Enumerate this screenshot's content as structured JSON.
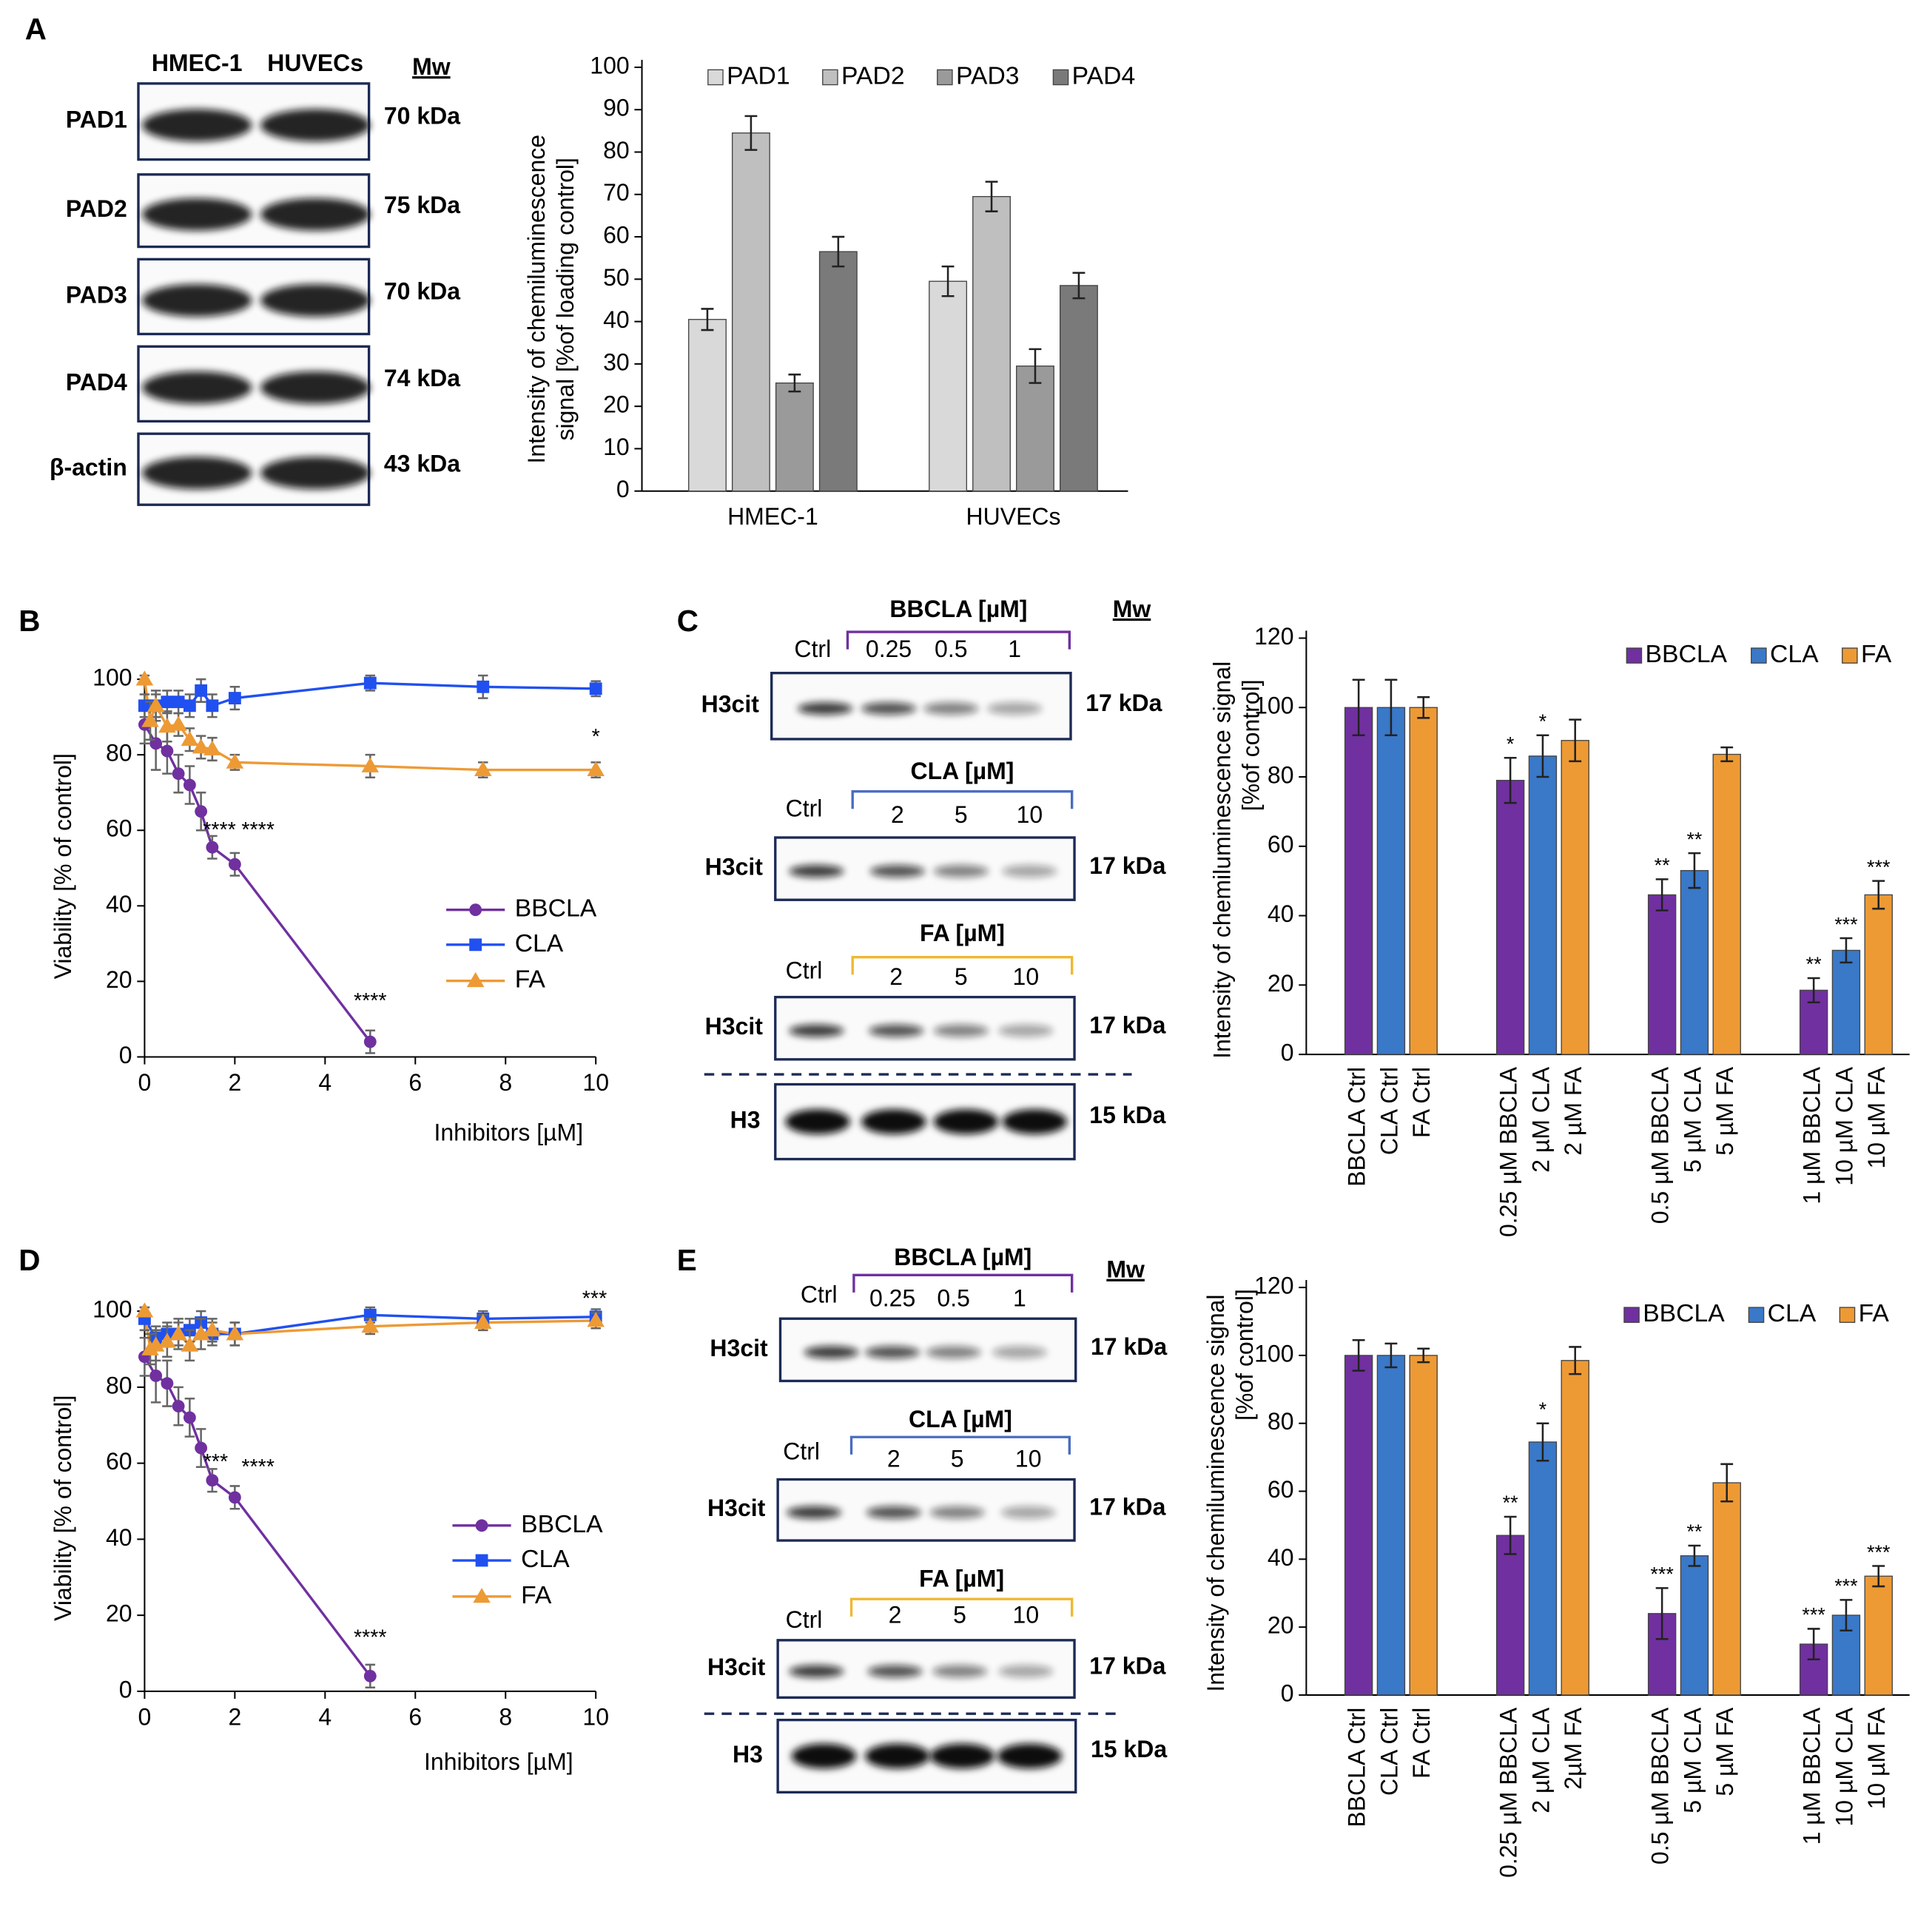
{
  "panels": [
    "A",
    "B",
    "C",
    "D",
    "E"
  ],
  "blots": {
    "A": {
      "lanes": [
        "HMEC-1",
        "HUVECs"
      ],
      "mw_header": "Mw",
      "rows": [
        {
          "label": "PAD1",
          "mw": "70 kDa"
        },
        {
          "label": "PAD2",
          "mw": "75 kDa"
        },
        {
          "label": "PAD3",
          "mw": "70 kDa"
        },
        {
          "label": "PAD4",
          "mw": "74 kDa"
        },
        {
          "label": "β-actin",
          "mw": "43 kDa"
        }
      ]
    },
    "C": {
      "mw_header": "Mw",
      "groups": [
        {
          "header": "BBCLA [µM]",
          "lanes": [
            "Ctrl",
            "0.25",
            "0.5",
            "1"
          ],
          "row": "H3cit",
          "mw": "17 kDa"
        },
        {
          "header": "CLA [µM]",
          "lanes": [
            "Ctrl",
            "2",
            "5",
            "10"
          ],
          "row": "H3cit",
          "mw": "17 kDa"
        },
        {
          "header": "FA [µM]",
          "lanes": [
            "Ctrl",
            "2",
            "5",
            "10"
          ],
          "row": "H3cit",
          "mw": "17 kDa"
        }
      ],
      "loading": {
        "row": "H3",
        "mw": "15 kDa"
      }
    },
    "E": {
      "mw_header": "Mw",
      "groups": [
        {
          "header": "BBCLA [µM]",
          "lanes": [
            "Ctrl",
            "0.25",
            "0.5",
            "1"
          ],
          "row": "H3cit",
          "mw": "17 kDa"
        },
        {
          "header": "CLA [µM]",
          "lanes": [
            "Ctrl",
            "2",
            "5",
            "10"
          ],
          "row": "H3cit",
          "mw": "17 kDa"
        },
        {
          "header": "FA [µM]",
          "lanes": [
            "Ctrl",
            "2",
            "5",
            "10"
          ],
          "row": "H3cit",
          "mw": "17 kDa"
        }
      ],
      "loading": {
        "row": "H3",
        "mw": "15 kDa"
      }
    }
  },
  "chart_data": [
    {
      "type": "bar",
      "ylabel": [
        "Intensity of chemiluminescence",
        "signal [%of loading control]"
      ],
      "categories": [
        "HMEC-1",
        "HUVECs"
      ],
      "series": [
        {
          "name": "PAD1",
          "color": "#d9d9d9",
          "values": [
            40.5,
            49.5
          ],
          "errors": [
            2.5,
            3.5
          ]
        },
        {
          "name": "PAD2",
          "color": "#bfbfbf",
          "values": [
            84.5,
            69.5
          ],
          "errors": [
            4,
            3.5
          ]
        },
        {
          "name": "PAD3",
          "color": "#9a9a9a",
          "values": [
            25.5,
            29.5
          ],
          "errors": [
            2,
            4
          ]
        },
        {
          "name": "PAD4",
          "color": "#7a7a7a",
          "values": [
            56.5,
            48.5
          ],
          "errors": [
            3.5,
            3
          ]
        }
      ],
      "ylim": [
        0,
        100
      ],
      "yticks": [
        0,
        10,
        20,
        30,
        40,
        50,
        60,
        70,
        80,
        90,
        100
      ],
      "grid": false,
      "legend": "top"
    },
    {
      "type": "line",
      "ylabel": [
        "Viability [% of control]"
      ],
      "xlabel": "Inhibitors [µM]",
      "series": [
        {
          "name": "BBCLA",
          "color": "#7030a0",
          "marker": "circle",
          "x": [
            0,
            0.25,
            0.5,
            0.75,
            1,
            1.25,
            1.5,
            2,
            5
          ],
          "values": [
            88,
            83,
            81,
            75,
            72,
            65,
            55.5,
            51,
            4
          ],
          "errors": [
            5,
            7,
            6,
            5,
            5,
            5,
            3,
            3,
            3
          ]
        },
        {
          "name": "CLA",
          "color": "#2050f0",
          "marker": "square",
          "x": [
            0,
            0.25,
            0.5,
            0.75,
            1,
            1.25,
            1.5,
            2,
            5,
            7.5,
            10
          ],
          "values": [
            93,
            93,
            94,
            94,
            93,
            97,
            93,
            95,
            99,
            98,
            97.5
          ],
          "errors": [
            3,
            3,
            3,
            3,
            3,
            3,
            3,
            3,
            2,
            3,
            2
          ]
        },
        {
          "name": "FA",
          "color": "#ed9a35",
          "marker": "triangle",
          "x": [
            0,
            0.125,
            0.25,
            0.5,
            0.75,
            1,
            1.25,
            1.5,
            2,
            5,
            7.5,
            10
          ],
          "values": [
            100,
            89,
            93,
            87.5,
            88,
            84,
            82,
            81.5,
            78,
            77,
            76,
            76
          ],
          "errors": [
            1,
            5,
            4,
            4,
            3,
            3,
            3,
            3,
            2,
            3,
            2,
            2
          ]
        }
      ],
      "annotations": [
        "****",
        "****",
        "****",
        "*"
      ],
      "xlim": [
        0,
        10
      ],
      "xticks": [
        0,
        2,
        4,
        6,
        8,
        10
      ],
      "ylim": [
        0,
        100
      ],
      "yticks": [
        0,
        20,
        40,
        60,
        80,
        100
      ],
      "grid": false,
      "legend": "right"
    },
    {
      "type": "bar",
      "ylabel": [
        "Intensity of chemiluminescence signal",
        "[%of control]"
      ],
      "categories": [
        null,
        null,
        null,
        null
      ],
      "series": [
        {
          "name": "BBCLA",
          "color": "#7030a0",
          "values": [
            100,
            79,
            46,
            18.5
          ],
          "errors": [
            8,
            6.5,
            4.5,
            3.5
          ],
          "labels": [
            "BBCLA Ctrl",
            "0.25 µM BBCLA",
            "0.5 µM BBCLA",
            "1 µM BBCLA"
          ],
          "annotations": [
            null,
            "*",
            "**",
            "**"
          ]
        },
        {
          "name": "CLA",
          "color": "#3a78c8",
          "values": [
            100,
            86,
            53,
            30
          ],
          "errors": [
            8,
            6,
            5,
            3.5
          ],
          "labels": [
            "CLA Ctrl",
            "2 µM CLA",
            "5 µM CLA",
            "10 µM CLA"
          ],
          "annotations": [
            null,
            "*",
            "**",
            "***"
          ]
        },
        {
          "name": "FA",
          "color": "#ed9a35",
          "values": [
            100,
            90.5,
            86.5,
            46
          ],
          "errors": [
            3,
            6,
            2,
            4
          ],
          "labels": [
            "FA Ctrl",
            "2 µM FA",
            "5 µM FA",
            "10 µM FA"
          ],
          "annotations": [
            null,
            null,
            null,
            "***"
          ]
        }
      ],
      "ylim": [
        0,
        120
      ],
      "yticks": [
        0,
        20,
        40,
        60,
        80,
        100,
        120
      ],
      "grid": false,
      "legend": "top-right"
    },
    {
      "type": "line",
      "ylabel": [
        "Viability [% of control]"
      ],
      "xlabel": "Inhibitors [µM]",
      "series": [
        {
          "name": "BBCLA",
          "color": "#7030a0",
          "marker": "circle",
          "x": [
            0,
            0.25,
            0.5,
            0.75,
            1,
            1.25,
            1.5,
            2,
            5
          ],
          "values": [
            88,
            83,
            81,
            75,
            72,
            64,
            55.5,
            51,
            4
          ],
          "errors": [
            5,
            7,
            6,
            5,
            5,
            5,
            3,
            3,
            3
          ]
        },
        {
          "name": "CLA",
          "color": "#2050f0",
          "marker": "square",
          "x": [
            0,
            0.25,
            0.5,
            0.75,
            1,
            1.25,
            1.5,
            2,
            5,
            7.5,
            10
          ],
          "values": [
            98,
            93,
            94,
            94,
            95,
            97,
            94,
            94,
            99,
            98,
            98.5
          ],
          "errors": [
            3,
            3,
            3,
            3,
            3,
            3,
            3,
            3,
            2,
            2,
            2
          ]
        },
        {
          "name": "FA",
          "color": "#ed9a35",
          "marker": "triangle",
          "x": [
            0,
            0.125,
            0.25,
            0.5,
            0.75,
            1,
            1.25,
            1.5,
            2,
            5,
            7.5,
            10
          ],
          "values": [
            100,
            90,
            91,
            92,
            94,
            91,
            94,
            95,
            94,
            96,
            97,
            97.5
          ],
          "errors": [
            1,
            4,
            4,
            4,
            4,
            4,
            4,
            3,
            3,
            2,
            2,
            2
          ]
        }
      ],
      "annotations": [
        "***",
        "****",
        "****",
        "***"
      ],
      "xlim": [
        0,
        10
      ],
      "xticks": [
        0,
        2,
        4,
        6,
        8,
        10
      ],
      "ylim": [
        0,
        100
      ],
      "yticks": [
        0,
        20,
        40,
        60,
        80,
        100
      ],
      "grid": false,
      "legend": "right"
    },
    {
      "type": "bar",
      "ylabel": [
        "Intensity of chemiluminescence signal",
        "[%of control]"
      ],
      "categories": [
        null,
        null,
        null,
        null
      ],
      "series": [
        {
          "name": "BBCLA",
          "color": "#7030a0",
          "values": [
            100,
            47,
            24,
            15
          ],
          "errors": [
            4.5,
            5.5,
            7.5,
            4.5
          ],
          "labels": [
            "BBCLA Ctrl",
            "0.25 µM BBCLA",
            "0.5 µM BBCLA",
            "1 µM BBCLA"
          ],
          "annotations": [
            null,
            "**",
            "***",
            "***"
          ]
        },
        {
          "name": "CLA",
          "color": "#3a78c8",
          "values": [
            100,
            74.5,
            41,
            23.5
          ],
          "errors": [
            3.5,
            5.5,
            3,
            4.5
          ],
          "labels": [
            "CLA Ctrl",
            "2 µM CLA",
            "5 µM CLA",
            "10 µM CLA"
          ],
          "annotations": [
            null,
            "*",
            "**",
            "***"
          ]
        },
        {
          "name": "FA",
          "color": "#ed9a35",
          "values": [
            100,
            98.5,
            62.5,
            35
          ],
          "errors": [
            2,
            4,
            5.5,
            3
          ],
          "labels": [
            "FA Ctrl",
            "2µM FA",
            "5 µM FA",
            "10 µM FA"
          ],
          "annotations": [
            null,
            null,
            null,
            "***"
          ]
        }
      ],
      "ylim": [
        0,
        120
      ],
      "yticks": [
        0,
        20,
        40,
        60,
        80,
        100,
        120
      ],
      "grid": false,
      "legend": "top-right"
    }
  ]
}
